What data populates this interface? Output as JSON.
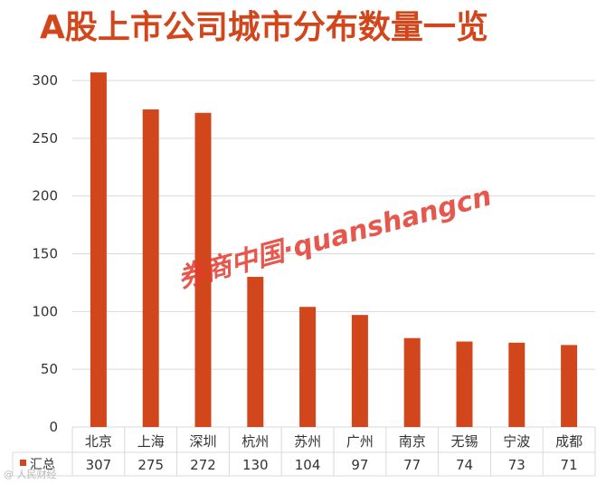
{
  "chart_data": {
    "type": "bar",
    "title": "A股上市公司城市分布数量一览",
    "categories": [
      "北京",
      "上海",
      "深圳",
      "杭州",
      "苏州",
      "广州",
      "南京",
      "无锡",
      "宁波",
      "成都"
    ],
    "series": [
      {
        "name": "汇总",
        "values": [
          307,
          275,
          272,
          130,
          104,
          97,
          77,
          74,
          73,
          71
        ]
      }
    ],
    "ylim": [
      0,
      300
    ],
    "yticks": [
      0,
      50,
      100,
      150,
      200,
      250,
      300
    ],
    "grid": true,
    "legend": "bottom-left data table",
    "colors": {
      "bar": "#d2461b",
      "title": "#d2461b",
      "grid": "#d9d9d9"
    }
  },
  "watermark": "券商中国·quanshangcn",
  "credit": "@ 人民财经"
}
